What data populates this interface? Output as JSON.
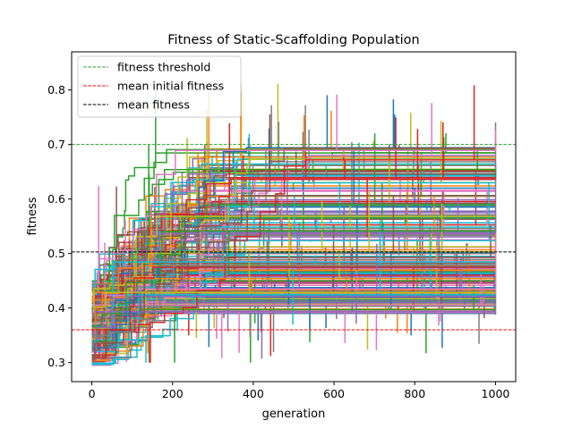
{
  "chart_data": {
    "type": "line",
    "title": "Fitness of Static-Scaffolding Population",
    "xlabel": "generation",
    "ylabel": "fitness",
    "xlim": [
      -50,
      1050
    ],
    "ylim": [
      0.265,
      0.87
    ],
    "xticks": [
      0,
      200,
      400,
      600,
      800,
      1000
    ],
    "yticks": [
      0.3,
      0.4,
      0.5,
      0.6,
      0.7,
      0.8
    ],
    "xtick_labels": [
      "0",
      "200",
      "400",
      "600",
      "800",
      "1000"
    ],
    "ytick_labels": [
      "0.3",
      "0.4",
      "0.5",
      "0.6",
      "0.7",
      "0.8"
    ],
    "legend_position": "upper-left",
    "grid": false,
    "reference_lines": [
      {
        "name": "fitness threshold",
        "y": 0.7,
        "color": "#2ca02c",
        "style": "dashed"
      },
      {
        "name": "mean initial fitness",
        "y": 0.36,
        "color": "#ff0000",
        "style": "dashed"
      },
      {
        "name": "mean fitness",
        "y": 0.503,
        "color": "#000000",
        "style": "dashed"
      }
    ],
    "population": {
      "count": 200,
      "generations": [
        0,
        1000
      ],
      "initial_fitness_range": [
        0.295,
        0.45
      ],
      "final_fitness_range": [
        0.39,
        0.7
      ],
      "colors": [
        "#1f77b4",
        "#ff7f0e",
        "#2ca02c",
        "#d62728",
        "#9467bd",
        "#8c564b",
        "#e377c2",
        "#7f7f7f",
        "#bcbd22",
        "#17becf"
      ]
    }
  }
}
